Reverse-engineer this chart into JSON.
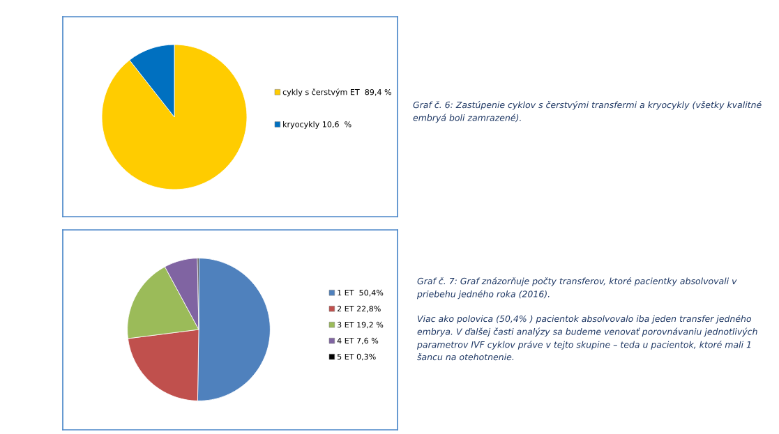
{
  "chart_data": [
    {
      "type": "pie",
      "categories": [
        "cykly s čerstvým ET  89,4 %",
        "kryocykly 10,6  %"
      ],
      "values": [
        89.4,
        10.6
      ],
      "colors": [
        "#ffcc00",
        "#0070c0"
      ],
      "legend": "right",
      "annotations": [
        "Graf č. 6: Zastúpenie cyklov s čerstvými transfermi a kryocykly (všetky kvalitné embryá boli zamrazené)."
      ]
    },
    {
      "type": "pie",
      "categories": [
        "1 ET  50,4%",
        "2 ET 22,8%",
        "3 ET 19,2 %",
        "4 ET 7,6 %",
        "5 ET 0,3%"
      ],
      "values": [
        50.4,
        22.8,
        19.2,
        7.6,
        0.3
      ],
      "colors": [
        "#4f81bd",
        "#c0504d",
        "#9bbb59",
        "#8064a2",
        "#000000"
      ],
      "legend": "right",
      "annotations": [
        "Graf č. 7: Graf znázorňuje počty transferov, ktoré pacientky absolvovali v priebehu jedného roka (2016).",
        "Viac ako polovica (50,4% ) pacientok absolvovalo iba jeden transfer jedného embrya. V ďalšej časti analýzy sa budeme venovať porovnávaniu jednotlivých parametrov IVF cyklov práve v tejto skupine – teda u pacientok, ktoré mali 1 šancu na otehotnenie."
      ]
    }
  ]
}
